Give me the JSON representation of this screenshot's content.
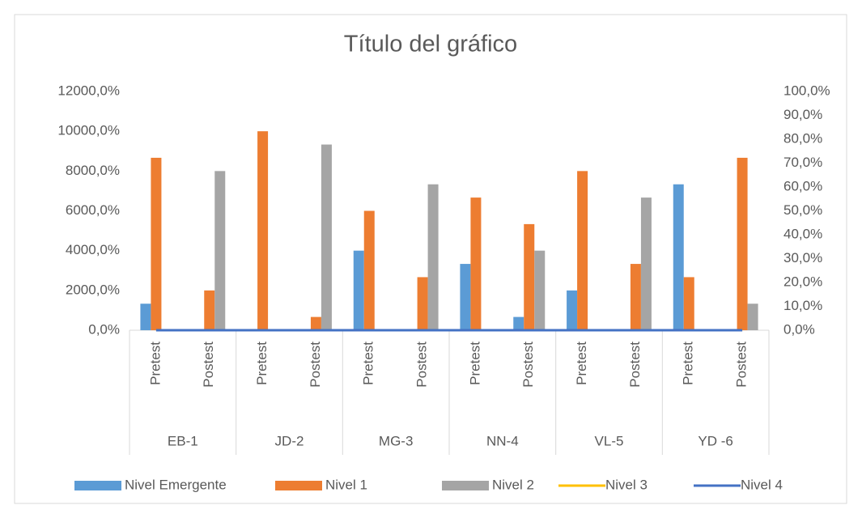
{
  "chart_data": {
    "type": "bar",
    "title": "Título del gráfico",
    "groups": [
      "EB-1",
      "JD-2",
      "MG-3",
      "NN-4",
      "VL-5",
      "YD -6"
    ],
    "categories": [
      "Pretest",
      "Postest",
      "Pretest",
      "Postest",
      "Pretest",
      "Postest",
      "Pretest",
      "Postest",
      "Pretest",
      "Postest",
      "Pretest",
      "Postest"
    ],
    "series": [
      {
        "name": "Nivel Emergente",
        "type": "bar",
        "color": "#5b9bd5",
        "values": [
          1333,
          0,
          0,
          0,
          4000,
          0,
          3333,
          667,
          2000,
          0,
          7333,
          0
        ]
      },
      {
        "name": "Nivel 1",
        "type": "bar",
        "color": "#ed7d31",
        "values": [
          8667,
          2000,
          10000,
          667,
          6000,
          2667,
          6667,
          5333,
          8000,
          3333,
          2667,
          8667
        ]
      },
      {
        "name": "Nivel 2",
        "type": "bar",
        "color": "#a5a5a5",
        "values": [
          0,
          8000,
          0,
          9333,
          0,
          7333,
          0,
          4000,
          0,
          6667,
          0,
          1333
        ]
      },
      {
        "name": "Nivel 3",
        "type": "line",
        "axis": "y2",
        "color": "#ffc000",
        "values": [
          0,
          0,
          0,
          0,
          0,
          0,
          0,
          0,
          0,
          0,
          0,
          0
        ]
      },
      {
        "name": "Nivel 4",
        "type": "line",
        "axis": "y2",
        "color": "#4472c4",
        "values": [
          0,
          0,
          0,
          0,
          0,
          0,
          0,
          0,
          0,
          0,
          0,
          0
        ]
      }
    ],
    "ylim": [
      0,
      12000
    ],
    "yticks": [
      {
        "value": 0,
        "label": "0,0%"
      },
      {
        "value": 2000,
        "label": "2000,0%"
      },
      {
        "value": 4000,
        "label": "4000,0%"
      },
      {
        "value": 6000,
        "label": "6000,0%"
      },
      {
        "value": 8000,
        "label": "8000,0%"
      },
      {
        "value": 10000,
        "label": "10000,0%"
      },
      {
        "value": 12000,
        "label": "12000,0%"
      }
    ],
    "y2lim": [
      0,
      100
    ],
    "y2ticks": [
      {
        "value": 0,
        "label": "0,0%"
      },
      {
        "value": 10,
        "label": "10,0%"
      },
      {
        "value": 20,
        "label": "20,0%"
      },
      {
        "value": 30,
        "label": "30,0%"
      },
      {
        "value": 40,
        "label": "40,0%"
      },
      {
        "value": 50,
        "label": "50,0%"
      },
      {
        "value": 60,
        "label": "60,0%"
      },
      {
        "value": 70,
        "label": "70,0%"
      },
      {
        "value": 80,
        "label": "80,0%"
      },
      {
        "value": 90,
        "label": "90,0%"
      },
      {
        "value": 100,
        "label": "100,0%"
      }
    ],
    "grid": false,
    "legend": "bottom"
  }
}
